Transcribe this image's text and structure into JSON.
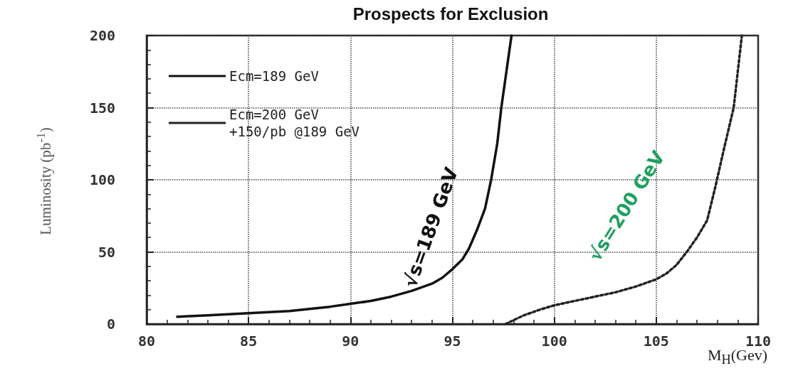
{
  "chart_data": {
    "type": "line",
    "title": "Prospects for Exclusion",
    "xlabel": "M$_{H}$(Gev)",
    "ylabel": "Luminosity (pb$^{-1}$)",
    "xlim": [
      80,
      110
    ],
    "xticks": [
      80,
      85,
      90,
      95,
      100,
      105,
      110
    ],
    "ylim": [
      0,
      200
    ],
    "yticks": [
      0,
      50,
      100,
      150,
      200
    ],
    "grid": true,
    "legend": "top left",
    "marker": "none",
    "series": [
      {
        "name": "Ecm=189 GeV",
        "color": "#111111",
        "line_style": "solid",
        "x": [
          81.5,
          83,
          85,
          87,
          89,
          90,
          91,
          92,
          93,
          94,
          94.5,
          95,
          95.5,
          95.8,
          96.2,
          96.6,
          96.9,
          97.2,
          97.4,
          97.7,
          97.9
        ],
        "values": [
          5,
          6,
          7.5,
          9,
          12,
          14,
          16,
          19,
          23,
          28,
          32,
          38,
          45,
          52,
          65,
          80,
          100,
          125,
          150,
          180,
          200
        ]
      },
      {
        "name": "Ecm=200 GeV\n+150/pb @189 GeV",
        "color": "#222222",
        "line_style": "dotted",
        "x": [
          97.6,
          98.5,
          99.3,
          100,
          101,
          102,
          103,
          104,
          105,
          105.5,
          106,
          106.5,
          107,
          107.5,
          107.9,
          108.3,
          108.8,
          109.2
        ],
        "values": [
          0,
          6,
          10,
          13,
          16,
          19,
          22,
          26,
          31,
          35,
          41,
          50,
          60,
          72,
          95,
          120,
          150,
          200
        ]
      }
    ],
    "annotations": [
      "√s=189 GeV",
      "√s=200 GeV"
    ]
  }
}
